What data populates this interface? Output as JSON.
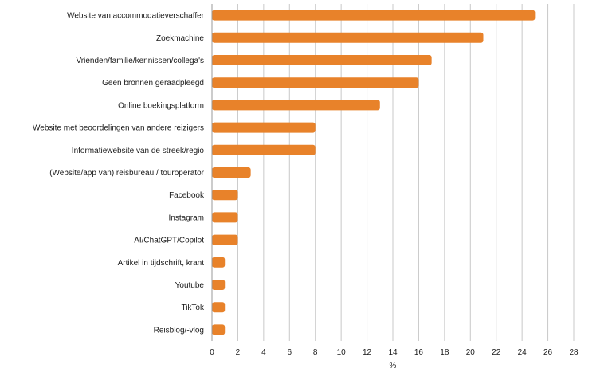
{
  "chart_data": {
    "type": "bar",
    "orientation": "horizontal",
    "categories": [
      "Website van accommodatieverschaffer",
      "Zoekmachine",
      "Vrienden/familie/kennissen/collega's",
      "Geen bronnen geraadpleegd",
      "Online boekingsplatform",
      "Website met beoordelingen van andere reizigers",
      "Informatiewebsite van de streek/regio",
      "(Website/app van) reisbureau / touroperator",
      "Facebook",
      "Instagram",
      "AI/ChatGPT/Copilot",
      "Artikel in tijdschrift, krant",
      "Youtube",
      "TikTok",
      "Reisblog/-vlog"
    ],
    "values": [
      25,
      21,
      17,
      16,
      13,
      8,
      8,
      3,
      2,
      2,
      2,
      1,
      1,
      1,
      1
    ],
    "xlabel": "%",
    "ylabel": "",
    "xlim": [
      0,
      28
    ],
    "xticks": [
      0,
      2,
      4,
      6,
      8,
      10,
      12,
      14,
      16,
      18,
      20,
      22,
      24,
      26,
      28
    ],
    "grid": "vertical",
    "bar_color": "#e8822a"
  }
}
